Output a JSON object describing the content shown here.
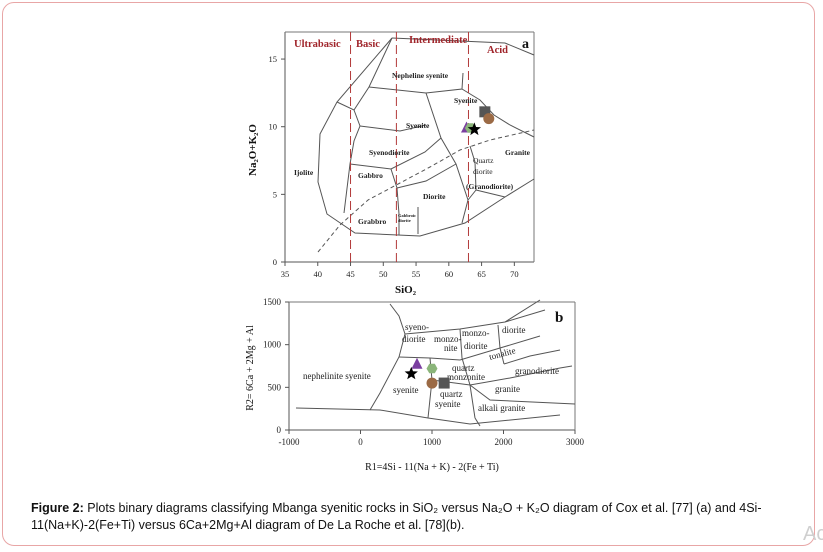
{
  "chart_data": [
    {
      "id": "a",
      "type": "scatter",
      "panel_label": "a",
      "xlabel": "SiO₂",
      "ylabel": "Na₂O+K₂O",
      "xlim": [
        35,
        73
      ],
      "ylim": [
        0,
        17
      ],
      "xticks": [
        "35",
        "40",
        "45",
        "50",
        "55",
        "60",
        "65",
        "70"
      ],
      "yticks": [
        "0",
        "5",
        "10",
        "15"
      ],
      "domains": [
        "Ultrabasic",
        "Basic",
        "Intermediate",
        "Acid"
      ],
      "domain_boundaries": [
        45,
        52,
        63
      ],
      "fields": [
        "Nepheline syenite",
        "Syenite",
        "Syenite",
        "Syenodiorite",
        "Gabbro",
        "Ijolite",
        "Grabbro",
        "Gabbroic diorite",
        "Diorite",
        "Quartz",
        "diorite",
        "(Granodiorite)",
        "Granite"
      ],
      "points": [
        {
          "marker": "square",
          "color": "#555555",
          "x": 65.5,
          "y": 11.1
        },
        {
          "marker": "circle",
          "color": "#9b6a45",
          "x": 66.1,
          "y": 10.6
        },
        {
          "marker": "triangle",
          "color": "#7b3fa0",
          "x": 62.7,
          "y": 9.9
        },
        {
          "marker": "hexagon",
          "color": "#8bb57a",
          "x": 63.3,
          "y": 9.9
        },
        {
          "marker": "star",
          "color": "#000000",
          "x": 63.9,
          "y": 9.8
        }
      ]
    },
    {
      "id": "b",
      "type": "scatter",
      "panel_label": "b",
      "xlabel": "R1=4Si - 11(Na + K) - 2(Fe + Ti)",
      "ylabel": "R2= 6Ca + 2Mg + Al",
      "xlim": [
        -1000,
        3000
      ],
      "ylim": [
        0,
        1500
      ],
      "xticks": [
        "-1000",
        "0",
        "1000",
        "2000",
        "3000"
      ],
      "yticks": [
        "0",
        "500",
        "1000",
        "1500"
      ],
      "fields": [
        "syeno-",
        "diorite",
        "monzo-",
        "nite",
        "monzo-",
        "diorite",
        "diorite",
        "tonalite",
        "nephelinite syenite",
        "quartz",
        "monzonite",
        "granodiorite",
        "syenite",
        "quartz",
        "syenite",
        "granite",
        "alkali granite"
      ],
      "points": [
        {
          "marker": "triangle",
          "color": "#7b3fa0",
          "x": 790,
          "y": 770
        },
        {
          "marker": "hexagon",
          "color": "#8bb57a",
          "x": 1000,
          "y": 720
        },
        {
          "marker": "star",
          "color": "#000000",
          "x": 710,
          "y": 660
        },
        {
          "marker": "circle",
          "color": "#9b6a45",
          "x": 1000,
          "y": 550
        },
        {
          "marker": "square",
          "color": "#555555",
          "x": 1170,
          "y": 550
        }
      ]
    }
  ],
  "caption": {
    "label": "Figure 2:",
    "text": "Plots binary diagrams classifying Mbanga syenitic rocks in SiO₂ versus Na₂O + K₂O diagram of Cox et al. [77] (a) and 4Si-11(Na+K)-2(Fe+Ti) versus 6Ca+2Mg+Al diagram of De La Roche et al. [78](b)."
  },
  "corner_text": "Ac"
}
